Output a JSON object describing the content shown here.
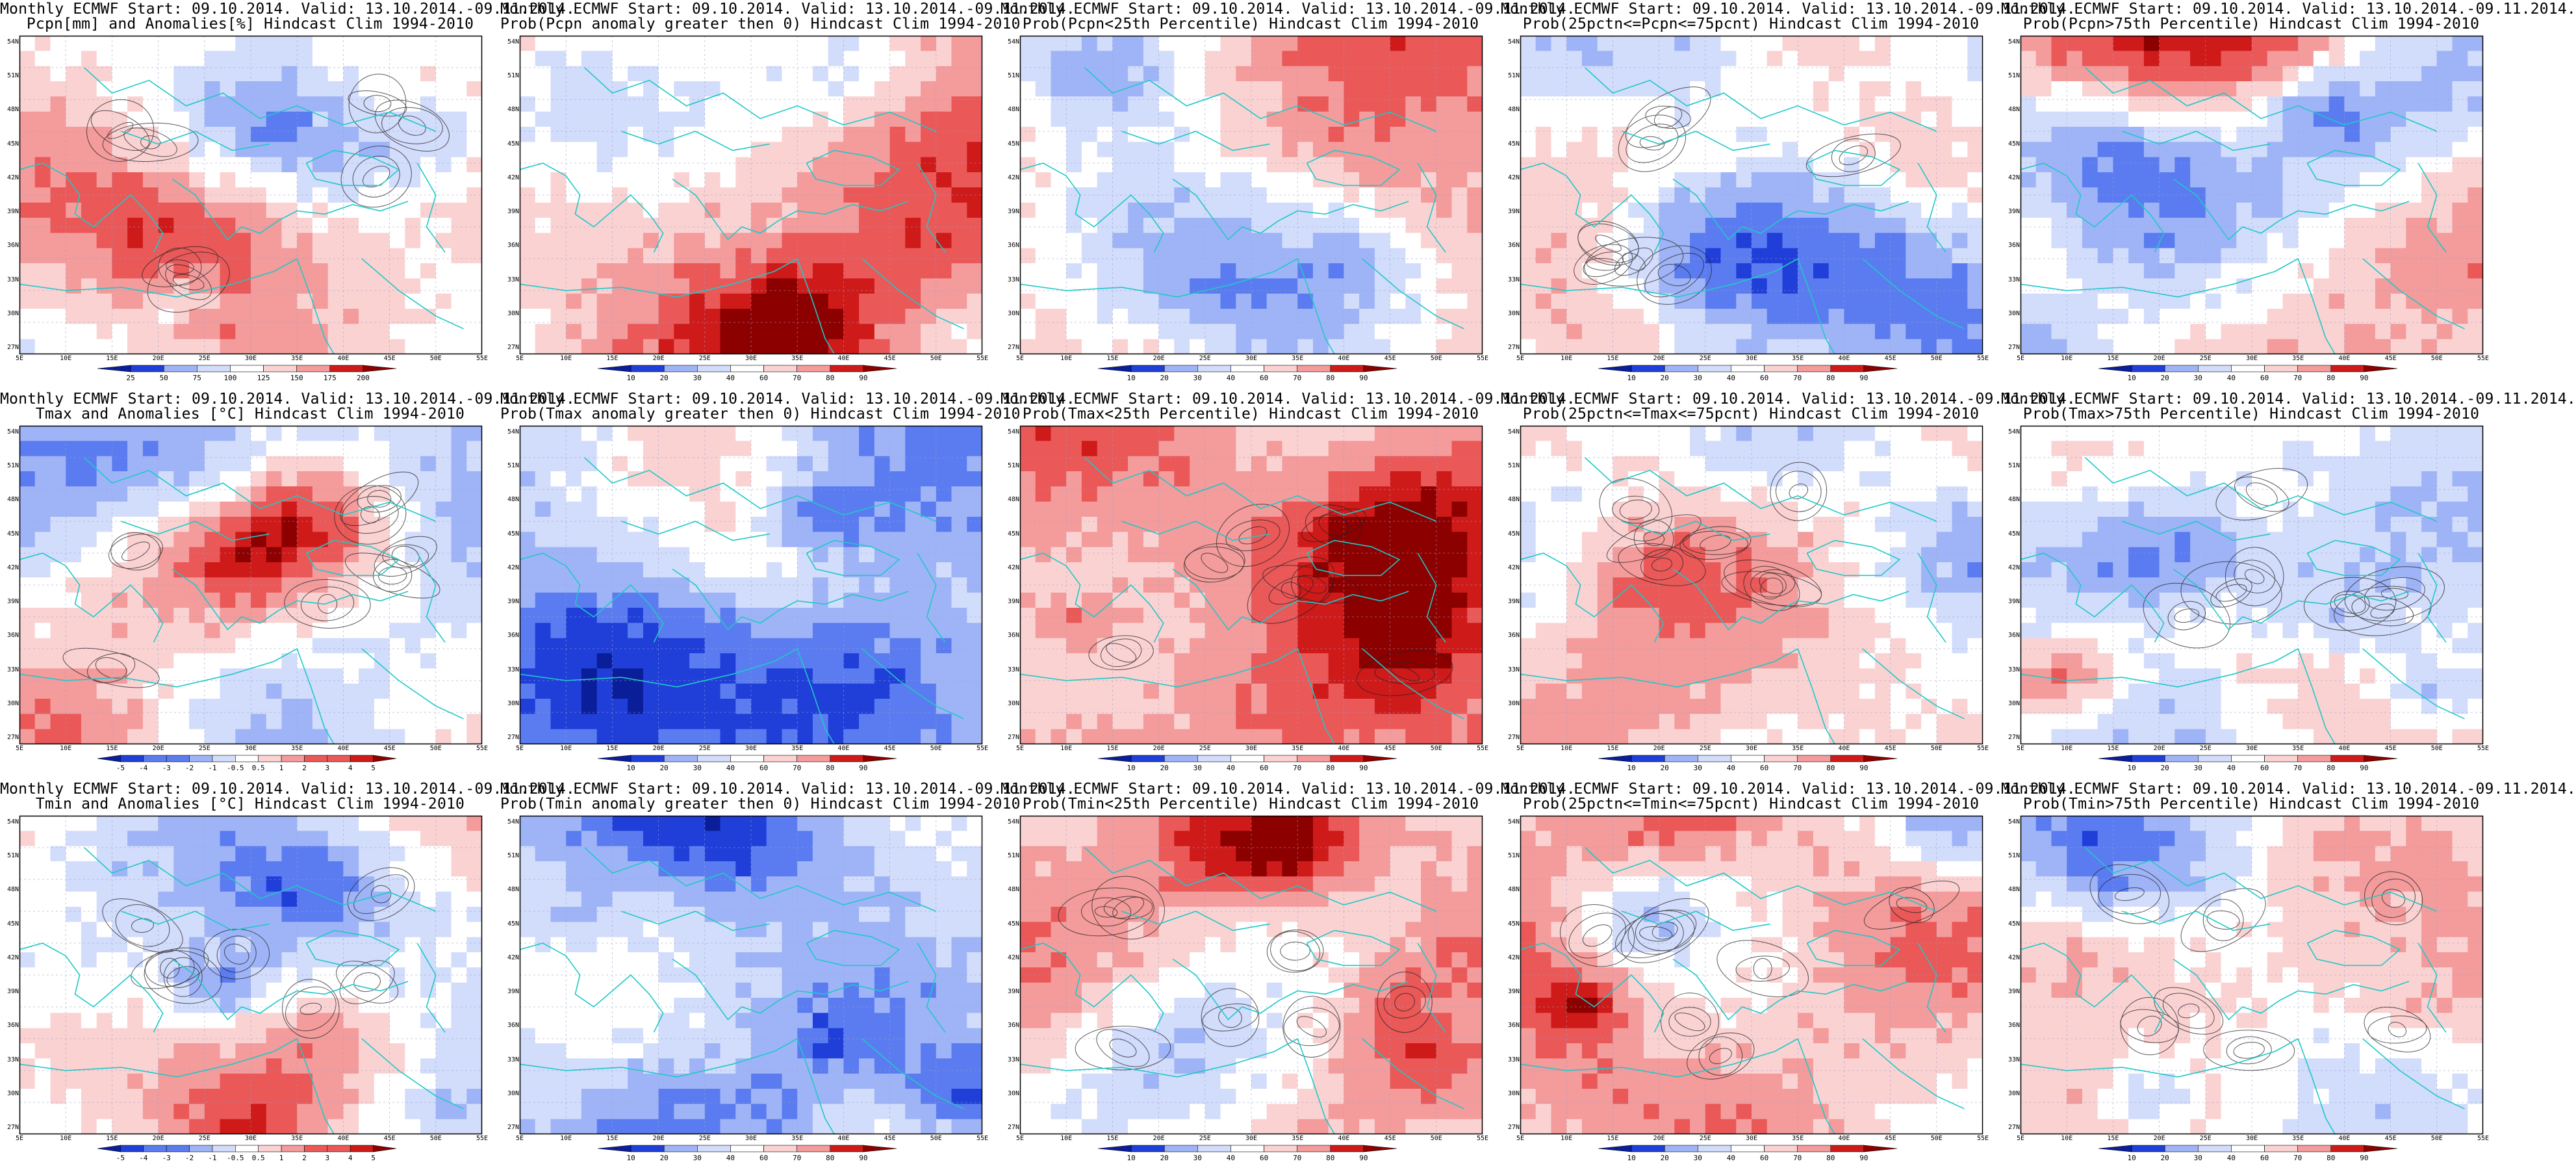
{
  "figure": {
    "lat_labels": [
      "54N",
      "51N",
      "48N",
      "45N",
      "42N",
      "39N",
      "36N",
      "33N",
      "30N",
      "27N"
    ],
    "lon_labels": [
      "5E",
      "10E",
      "15E",
      "20E",
      "25E",
      "30E",
      "35E",
      "40E",
      "45E",
      "50E",
      "55E"
    ],
    "colors": {
      "below": [
        "#0a1e9a",
        "#1f3fd8",
        "#5b7cf0",
        "#9fb4f7",
        "#d2dcfb"
      ],
      "above": [
        "#fbd2d2",
        "#f49b9b",
        "#ea5858",
        "#cf1a1a",
        "#8c0000"
      ],
      "coast": "#1fc8c8",
      "contour": "#222222"
    },
    "panels": [
      {
        "title1": "Monthly ECMWF Start: 09.10.2014. Valid: 13.10.2014.-09.11.2014.",
        "title2": "Pcpn[mm] and Anomalies[%] Hindcast Clim 1994-2010",
        "cbar": [
          "25",
          "50",
          "75",
          "100",
          "125",
          "150",
          "175",
          "200"
        ],
        "bias": 0.1,
        "seed": 11,
        "contours": true
      },
      {
        "title1": "Monthly ECMWF Start: 09.10.2014. Valid: 13.10.2014.-09.11.2014.",
        "title2": "Prob(Pcpn anomaly greater then 0) Hindcast Clim 1994-2010",
        "cbar": [
          "10",
          "20",
          "30",
          "40",
          "60",
          "70",
          "80",
          "90"
        ],
        "bias": 0.35,
        "seed": 12,
        "contours": false
      },
      {
        "title1": "Monthly ECMWF Start: 09.10.2014. Valid: 13.10.2014.-09.11.2014.",
        "title2": "Prob(Pcpn<25th Percentile) Hindcast Clim 1994-2010",
        "cbar": [
          "10",
          "20",
          "30",
          "40",
          "60",
          "70",
          "80",
          "90"
        ],
        "bias": 0.55,
        "seed": 13,
        "contours": false
      },
      {
        "title1": "Monthly ECMWF Start: 09.10.2014. Valid: 13.10.2014.-09.11.2014.",
        "title2": "Prob(25pctn<=Pcpn<=75pcnt) Hindcast Clim 1994-2010",
        "cbar": [
          "10",
          "20",
          "30",
          "40",
          "60",
          "70",
          "80",
          "90"
        ],
        "bias": -0.05,
        "seed": 14,
        "contours": true
      },
      {
        "title1": "Monthly ECMWF Start: 09.10.2014. Valid: 13.10.2014.-09.11.2014.",
        "title2": "Prob(Pcpn>75th Percentile) Hindcast Clim 1994-2010",
        "cbar": [
          "10",
          "20",
          "30",
          "40",
          "60",
          "70",
          "80",
          "90"
        ],
        "bias": 0.5,
        "seed": 15,
        "contours": false
      },
      {
        "title1": "Monthly ECMWF Start: 09.10.2014. Valid: 13.10.2014.-09.11.2014.",
        "title2": "Tmax and Anomalies [°C] Hindcast Clim 1994-2010",
        "cbar": [
          "-5",
          "-4",
          "-3",
          "-2",
          "-1",
          "-0.5",
          "0.5",
          "1",
          "2",
          "3",
          "4",
          "5"
        ],
        "bias": -0.2,
        "seed": 21,
        "contours": true
      },
      {
        "title1": "Monthly ECMWF Start: 09.10.2014. Valid: 13.10.2014.-09.11.2014.",
        "title2": "Prob(Tmax anomaly greater then 0) Hindcast Clim 1994-2010",
        "cbar": [
          "10",
          "20",
          "30",
          "40",
          "60",
          "70",
          "80",
          "90"
        ],
        "bias": -0.45,
        "seed": 22,
        "contours": false
      },
      {
        "title1": "Monthly ECMWF Start: 09.10.2014. Valid: 13.10.2014.-09.11.2014.",
        "title2": "Prob(Tmax<25th Percentile) Hindcast Clim 1994-2010",
        "cbar": [
          "10",
          "20",
          "30",
          "40",
          "60",
          "70",
          "80",
          "90"
        ],
        "bias": 0.6,
        "seed": 23,
        "contours": true
      },
      {
        "title1": "Monthly ECMWF Start: 09.10.2014. Valid: 13.10.2014.-09.11.2014.",
        "title2": "Prob(25pctn<=Tmax<=75pcnt) Hindcast Clim 1994-2010",
        "cbar": [
          "10",
          "20",
          "30",
          "40",
          "60",
          "70",
          "80",
          "90"
        ],
        "bias": 0.15,
        "seed": 24,
        "contours": true
      },
      {
        "title1": "Monthly ECMWF Start: 09.10.2014. Valid: 13.10.2014.-09.11.2014.",
        "title2": "Prob(Tmax>75th Percentile) Hindcast Clim 1994-2010",
        "cbar": [
          "10",
          "20",
          "30",
          "40",
          "60",
          "70",
          "80",
          "90"
        ],
        "bias": -0.1,
        "seed": 25,
        "contours": true
      },
      {
        "title1": "Monthly ECMWF Start: 09.10.2014. Valid: 13.10.2014.-09.11.2014.",
        "title2": "Tmin and Anomalies [°C] Hindcast Clim 1994-2010",
        "cbar": [
          "-5",
          "-4",
          "-3",
          "-2",
          "-1",
          "-0.5",
          "0.5",
          "1",
          "2",
          "3",
          "4",
          "5"
        ],
        "bias": -0.05,
        "seed": 31,
        "contours": true
      },
      {
        "title1": "Monthly ECMWF Start: 09.10.2014. Valid: 13.10.2014.-09.11.2014.",
        "title2": "Prob(Tmin anomaly greater then 0) Hindcast Clim 1994-2010",
        "cbar": [
          "10",
          "20",
          "30",
          "40",
          "60",
          "70",
          "80",
          "90"
        ],
        "bias": -0.35,
        "seed": 32,
        "contours": false
      },
      {
        "title1": "Monthly ECMWF Start: 09.10.2014. Valid: 13.10.2014.-09.11.2014.",
        "title2": "Prob(Tmin<25th Percentile) Hindcast Clim 1994-2010",
        "cbar": [
          "10",
          "20",
          "30",
          "40",
          "60",
          "70",
          "80",
          "90"
        ],
        "bias": 0.4,
        "seed": 33,
        "contours": true
      },
      {
        "title1": "Monthly ECMWF Start: 09.10.2014. Valid: 13.10.2014.-09.11.2014.",
        "title2": "Prob(25pctn<=Tmin<=75pcnt) Hindcast Clim 1994-2010",
        "cbar": [
          "10",
          "20",
          "30",
          "40",
          "60",
          "70",
          "80",
          "90"
        ],
        "bias": 0.35,
        "seed": 34,
        "contours": true
      },
      {
        "title1": "Monthly ECMWF Start: 09.10.2014. Valid: 13.10.2014.-09.11.2014.",
        "title2": "Prob(Tmin>75th Percentile) Hindcast Clim 1994-2010",
        "cbar": [
          "10",
          "20",
          "30",
          "40",
          "60",
          "70",
          "80",
          "90"
        ],
        "bias": 0.1,
        "seed": 35,
        "contours": true
      }
    ]
  }
}
